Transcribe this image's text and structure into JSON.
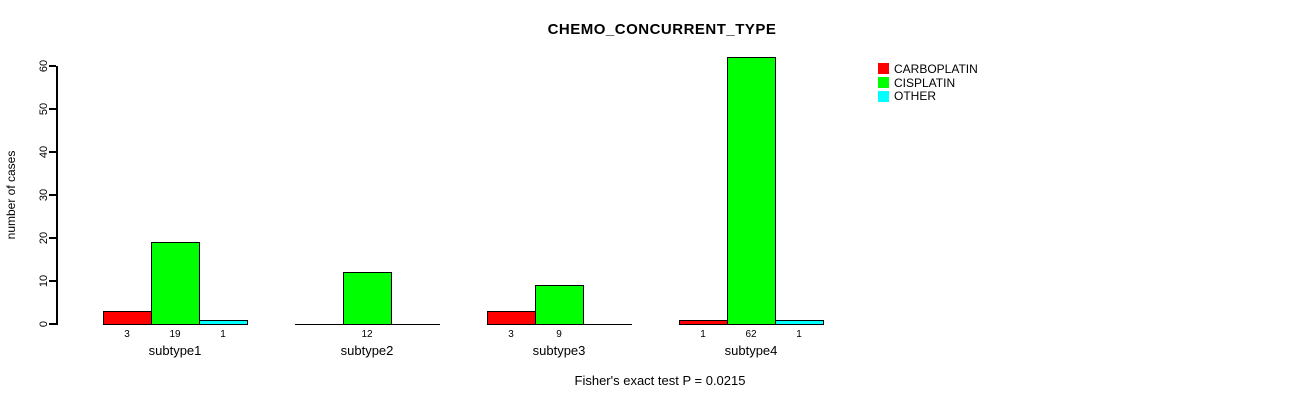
{
  "chart_data": {
    "type": "bar",
    "title": "CHEMO_CONCURRENT_TYPE",
    "ylabel": "number of cases",
    "xlabel": "",
    "categories": [
      "subtype1",
      "subtype2",
      "subtype3",
      "subtype4"
    ],
    "series": [
      {
        "name": "CARBOPLATIN",
        "color": "#FF0000",
        "values": [
          3,
          0,
          3,
          1
        ]
      },
      {
        "name": "CISPLATIN",
        "color": "#00FF00",
        "values": [
          19,
          12,
          9,
          62
        ]
      },
      {
        "name": "OTHER",
        "color": "#00FFFF",
        "values": [
          1,
          0,
          0,
          1
        ]
      }
    ],
    "bar_value_labels": [
      [
        "3",
        "",
        "3",
        "1"
      ],
      [
        "19",
        "12",
        "9",
        "62"
      ],
      [
        "1",
        "",
        "",
        "1"
      ]
    ],
    "yticks": [
      0,
      10,
      20,
      30,
      40,
      50,
      60
    ],
    "ylim": [
      0,
      60
    ],
    "grid": false,
    "legend_position": "right",
    "annotation": "Fisher's exact test P = 0.0215",
    "background_color": "#FFFFFF",
    "axis_color": "#000000"
  }
}
